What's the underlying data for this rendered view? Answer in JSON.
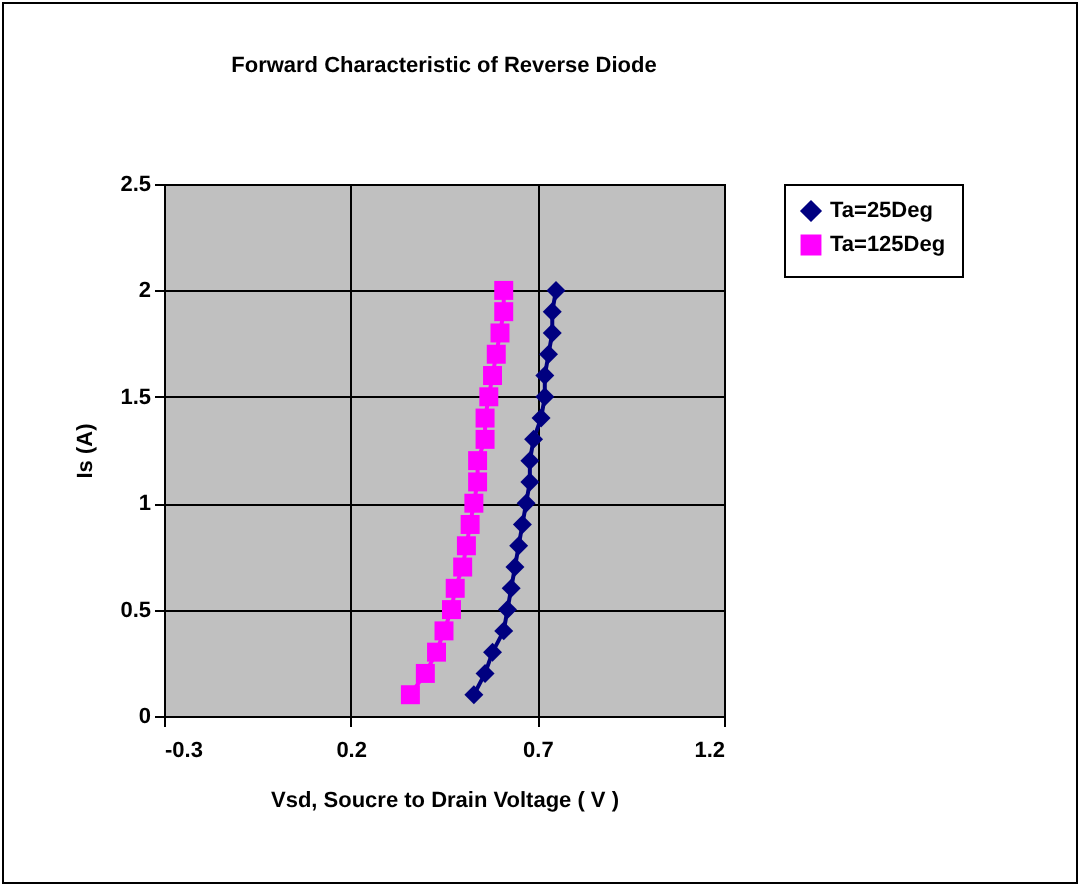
{
  "chart_data": {
    "type": "line",
    "title": "Forward Characteristic of Reverse Diode",
    "xlabel": "Vsd, Soucre to Drain Voltage ( V )",
    "ylabel": "Is (A)",
    "xlim": [
      -0.3,
      1.2
    ],
    "xticks": [
      -0.3,
      0.2,
      0.7,
      1.2
    ],
    "ylim": [
      0,
      2.5
    ],
    "yticks": [
      0,
      0.5,
      1,
      1.5,
      2,
      2.5
    ],
    "grid": true,
    "legend": "right",
    "series": [
      {
        "name": "Ta=25Deg",
        "color": "#000080",
        "marker": "diamond",
        "x": [
          0.53,
          0.56,
          0.58,
          0.61,
          0.62,
          0.63,
          0.64,
          0.65,
          0.66,
          0.67,
          0.68,
          0.68,
          0.69,
          0.71,
          0.72,
          0.72,
          0.73,
          0.74,
          0.74,
          0.75
        ],
        "values": [
          0.1,
          0.2,
          0.3,
          0.4,
          0.5,
          0.6,
          0.7,
          0.8,
          0.9,
          1.0,
          1.1,
          1.2,
          1.3,
          1.4,
          1.5,
          1.6,
          1.7,
          1.8,
          1.9,
          2.0
        ]
      },
      {
        "name": "Ta=125Deg",
        "color": "#ff00ff",
        "marker": "square",
        "x": [
          0.36,
          0.4,
          0.43,
          0.45,
          0.47,
          0.48,
          0.5,
          0.51,
          0.52,
          0.53,
          0.54,
          0.54,
          0.56,
          0.56,
          0.57,
          0.58,
          0.59,
          0.6,
          0.61,
          0.61
        ],
        "values": [
          0.1,
          0.2,
          0.3,
          0.4,
          0.5,
          0.6,
          0.7,
          0.8,
          0.9,
          1.0,
          1.1,
          1.2,
          1.3,
          1.4,
          1.5,
          1.6,
          1.7,
          1.8,
          1.9,
          2.0
        ]
      }
    ]
  }
}
